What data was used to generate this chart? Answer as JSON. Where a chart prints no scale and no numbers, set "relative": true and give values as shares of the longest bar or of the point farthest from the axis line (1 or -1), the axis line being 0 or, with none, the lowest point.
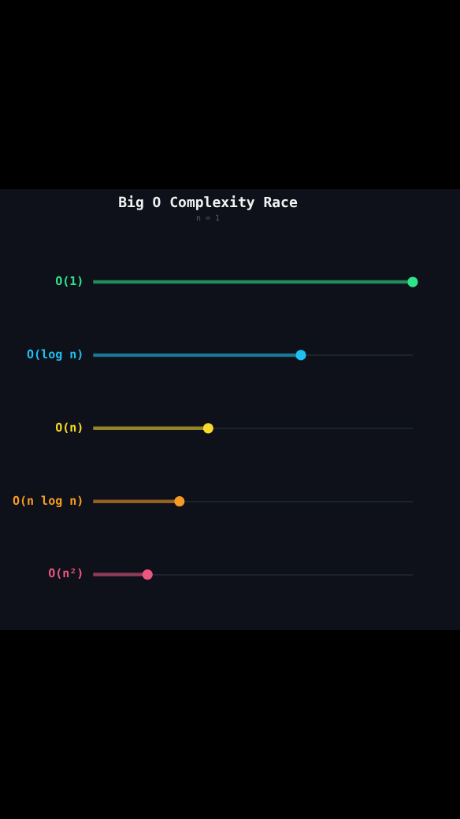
{
  "chart_data": {
    "type": "lollipop",
    "orientation": "horizontal",
    "relative": true,
    "title": "Big O Complexity Race",
    "subtitle": "n = 1",
    "grid": "y",
    "categories": [
      "O(1)",
      "O(log n)",
      "O(n)",
      "O(n log n)",
      "O(n²)"
    ],
    "values": [
      1,
      0.65,
      0.36,
      0.27,
      0.17
    ],
    "colors": [
      "#2ee38a",
      "#1fbff0",
      "#f7da2a",
      "#f79b24",
      "#ec5580"
    ]
  }
}
